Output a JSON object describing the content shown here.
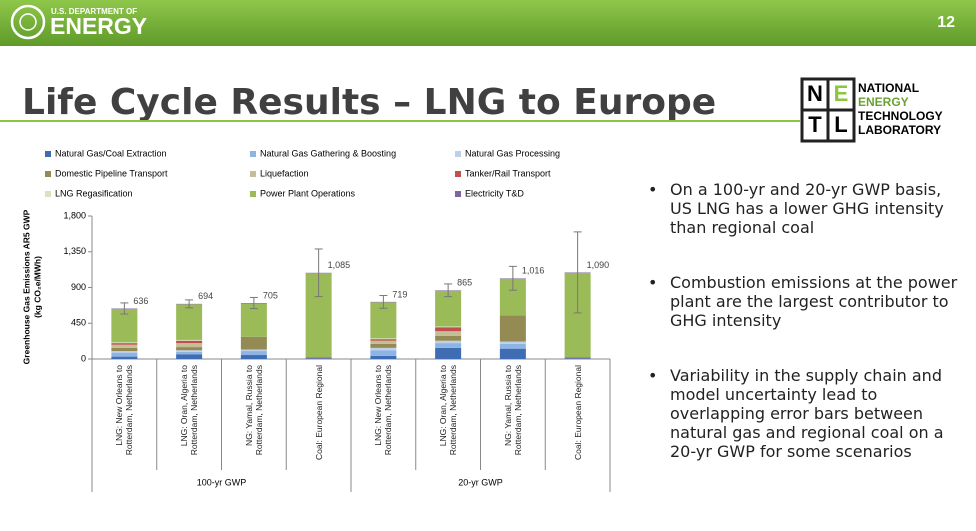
{
  "header": {
    "department": "U.S. DEPARTMENT OF",
    "agency": "ENERGY",
    "page_number": "12"
  },
  "title": "Life Cycle Results – LNG to Europe",
  "logo": {
    "letters": [
      "N",
      "E",
      "T",
      "L"
    ],
    "lines": [
      "NATIONAL",
      "ENERGY",
      "TECHNOLOGY",
      "LABORATORY"
    ]
  },
  "chart_data": {
    "type": "bar",
    "stacked": true,
    "ylabel": "Greenhouse Gas Emissions AR5 GWP",
    "ylabel_units": "(kg CO₂e/MWh)",
    "categories": [
      "LNG: New Orleans to Rotterdam, Netherlands",
      "LNG: Oran, Algeria to Rotterdam, Netherlands",
      "NG: Yamal, Russia to Rotterdam, Netherlands",
      "Coal: European Regional",
      "LNG: New Orleans to Rotterdam, Netherlands",
      "LNG: Oran, Algeria to Rotterdam, Netherlands",
      "NG: Yamal, Russia to Rotterdam, Netherlands",
      "Coal: European Regional"
    ],
    "groups": [
      "100-yr GWP",
      "20-yr GWP"
    ],
    "series": [
      {
        "name": "Natural Gas/Coal Extraction",
        "color": "#3f6db4",
        "values": [
          30,
          60,
          50,
          10,
          40,
          140,
          130,
          10
        ]
      },
      {
        "name": "Natural Gas Gathering & Boosting",
        "color": "#8db4e3",
        "values": [
          50,
          30,
          50,
          0,
          70,
          60,
          60,
          0
        ]
      },
      {
        "name": "Natural Gas Processing",
        "color": "#bdd0e9",
        "values": [
          20,
          20,
          20,
          0,
          30,
          30,
          30,
          0
        ]
      },
      {
        "name": "Domestic Pipeline Transport",
        "color": "#948a54",
        "values": [
          40,
          40,
          160,
          0,
          50,
          60,
          330,
          0
        ]
      },
      {
        "name": "Liquefaction",
        "color": "#c4bd97",
        "values": [
          40,
          50,
          0,
          0,
          40,
          60,
          0,
          0
        ]
      },
      {
        "name": "Tanker/Rail Transport",
        "color": "#c0504d",
        "values": [
          20,
          30,
          0,
          10,
          20,
          50,
          0,
          10
        ]
      },
      {
        "name": "LNG Regasification",
        "color": "#d7e4bd",
        "values": [
          10,
          10,
          0,
          0,
          10,
          10,
          0,
          0
        ]
      },
      {
        "name": "Power Plant Operations",
        "color": "#9bbb59",
        "values": [
          420,
          448,
          419,
          1059,
          453,
          449,
          460,
          1064
        ]
      },
      {
        "name": "Electricity T&D",
        "color": "#8064a2",
        "values": [
          6,
          6,
          6,
          6,
          6,
          6,
          6,
          6
        ]
      }
    ],
    "totals": [
      636,
      694,
      705,
      1085,
      719,
      865,
      1016,
      1090
    ],
    "totals_labels": [
      "636",
      "694",
      "705",
      "1,085",
      "719",
      "865",
      "1,016",
      "1,090"
    ],
    "errors": [
      70,
      50,
      70,
      300,
      80,
      80,
      150,
      510
    ],
    "ylim": [
      0,
      1800
    ],
    "yticks": [
      0,
      450,
      900,
      {
        "value": 1350,
        "label": "1,350"
      },
      {
        "value": 1800,
        "label": "1,800"
      }
    ],
    "grid": false
  },
  "bullets": [
    "On a 100-yr and 20-yr GWP basis, US LNG has a lower GHG intensity than regional coal",
    "Combustion emissions at the power plant are the largest contributor to GHG intensity",
    "Variability in the supply chain and model uncertainty lead to overlapping error bars between natural gas and regional coal on a 20-yr GWP for some scenarios"
  ]
}
